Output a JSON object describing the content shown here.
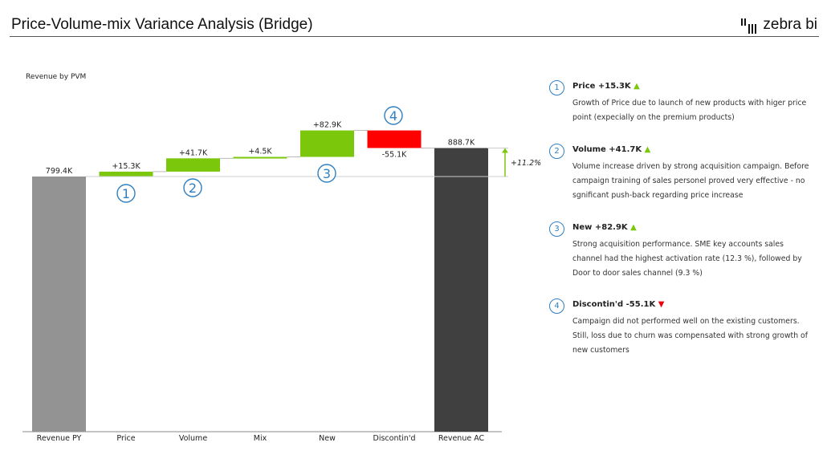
{
  "header": {
    "title": "Price-Volume-mix Variance Analysis (Bridge)",
    "logo_text": "zebra bi"
  },
  "colors": {
    "positive": "#7ac70c",
    "negative": "#ff0000",
    "py": "#939393",
    "ac": "#404040",
    "marker": "#2f7fc1"
  },
  "chart_data": {
    "type": "waterfall",
    "title": "Revenue by PVM",
    "categories": [
      "Revenue PY",
      "Price",
      "Volume",
      "Mix",
      "New",
      "Discontin'd",
      "Revenue AC"
    ],
    "values": [
      799.4,
      15.3,
      41.7,
      4.5,
      82.9,
      -55.1,
      888.7
    ],
    "kinds": [
      "total",
      "delta",
      "delta",
      "delta",
      "delta",
      "delta",
      "total"
    ],
    "labels": [
      "799.4K",
      "+15.3K",
      "+41.7K",
      "+4.5K",
      "+82.9K",
      "-55.1K",
      "888.7K"
    ],
    "ylim": [
      0,
      888.7
    ],
    "markers": [
      {
        "category": "Price",
        "num": "1"
      },
      {
        "category": "Volume",
        "num": "2"
      },
      {
        "category": "New",
        "num": "3"
      },
      {
        "category": "Discontin'd",
        "num": "4"
      }
    ],
    "total_change": "+11.2%"
  },
  "notes": [
    {
      "num": "1",
      "head": "Price +15.3K",
      "dir": "up",
      "body": "Growth of Price due to launch of new products with higer price point (expecially on the premium products)"
    },
    {
      "num": "2",
      "head": "Volume +41.7K",
      "dir": "up",
      "body": "Volume increase driven by strong acquisition campaign. Before campaign training of sales personel proved very effective - no sgnificant push-back regarding price increase"
    },
    {
      "num": "3",
      "head": "New +82.9K",
      "dir": "up",
      "body": "Strong acquisition performance. SME key accounts sales channel had the highest activation rate (12.3 %), followed by Door to door sales channel (9.3 %)"
    },
    {
      "num": "4",
      "head": "Discontin'd -55.1K",
      "dir": "down",
      "body": "Campaign did not performed well on the existing customers. Still, loss due to churn was compensated with strong growth of new customers"
    }
  ]
}
